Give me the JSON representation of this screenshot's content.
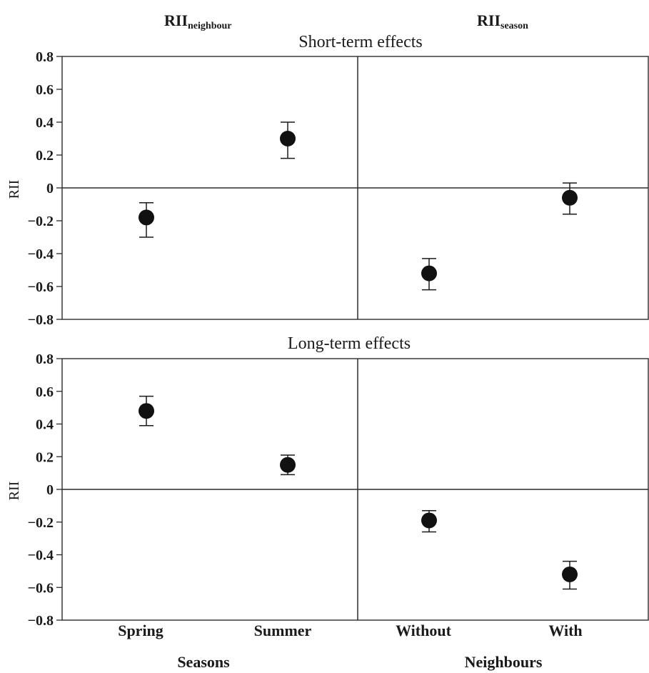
{
  "chart_data": {
    "type": "scatter",
    "header_left": "RII",
    "header_left_sub": "neighbour",
    "header_right": "RII",
    "header_right_sub": "season",
    "ylabel": "RII",
    "ylim": [
      -0.8,
      0.8
    ],
    "yticks": [
      "0.8",
      "0.6",
      "0.4",
      "0.2",
      "0",
      "−0.2",
      "−0.4",
      "−0.6",
      "−0.8"
    ],
    "x_categories_left": [
      "Spring",
      "Summer"
    ],
    "x_categories_right": [
      "Without",
      "With"
    ],
    "xlabel_left": "Seasons",
    "xlabel_right": "Neighbours",
    "panels": [
      {
        "title": "Short-term effects",
        "left": [
          {
            "category": "Spring",
            "value": -0.18,
            "err_low": -0.3,
            "err_high": -0.09
          },
          {
            "category": "Summer",
            "value": 0.3,
            "err_low": 0.18,
            "err_high": 0.4
          }
        ],
        "right": [
          {
            "category": "Without",
            "value": -0.52,
            "err_low": -0.62,
            "err_high": -0.43
          },
          {
            "category": "With",
            "value": -0.06,
            "err_low": -0.16,
            "err_high": 0.03
          }
        ]
      },
      {
        "title": "Long-term effects",
        "left": [
          {
            "category": "Spring",
            "value": 0.48,
            "err_low": 0.39,
            "err_high": 0.57
          },
          {
            "category": "Summer",
            "value": 0.15,
            "err_low": 0.09,
            "err_high": 0.21
          }
        ],
        "right": [
          {
            "category": "Without",
            "value": -0.19,
            "err_low": -0.26,
            "err_high": -0.13
          },
          {
            "category": "With",
            "value": -0.52,
            "err_low": -0.61,
            "err_high": -0.44
          }
        ]
      }
    ]
  }
}
